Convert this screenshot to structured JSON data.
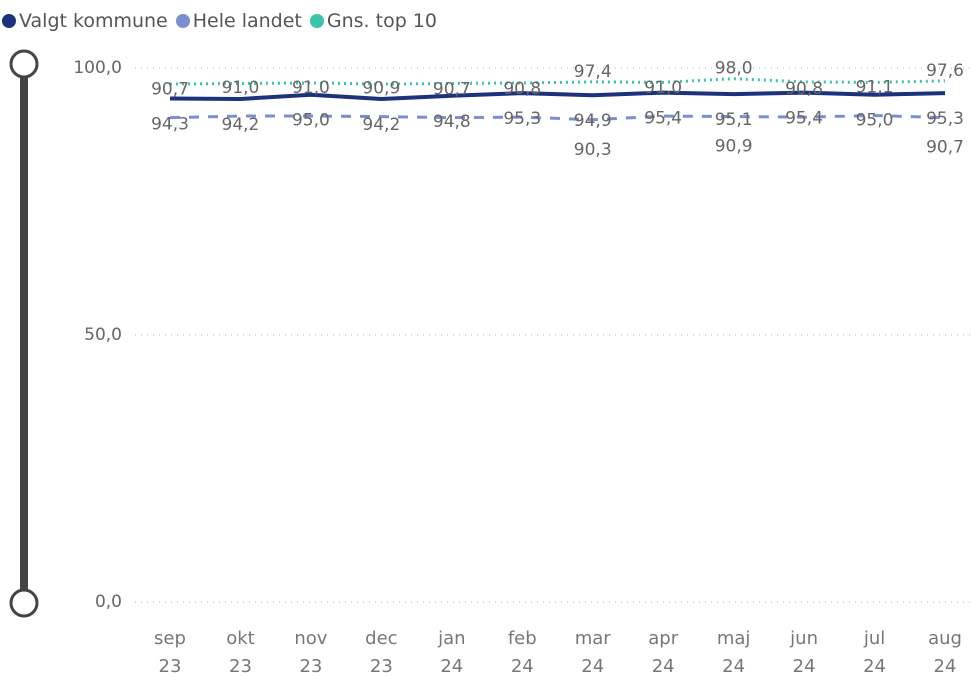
{
  "chart_data": {
    "type": "line",
    "categories": [
      "sep 23",
      "okt 23",
      "nov 23",
      "dec 23",
      "jan 24",
      "feb 24",
      "mar 24",
      "apr 24",
      "maj 24",
      "jun 24",
      "jul 24",
      "aug 24"
    ],
    "series": [
      {
        "name": "Valgt kommune",
        "color": "#1c327e",
        "style": "solid",
        "values": [
          94.3,
          94.2,
          95.0,
          94.2,
          94.8,
          95.3,
          94.9,
          95.4,
          95.1,
          95.4,
          95.0,
          95.3
        ],
        "value_labels": [
          "94,3",
          "94,2",
          "95,0",
          "94,2",
          "94,8",
          "95,3",
          "94,9",
          "95,4",
          "95,1",
          "95,4",
          "95,0",
          "95,3"
        ]
      },
      {
        "name": "Hele landet",
        "color": "#7b8fcf",
        "style": "dashed",
        "values": [
          90.7,
          91.0,
          91.0,
          90.9,
          90.7,
          90.8,
          90.3,
          91.0,
          90.9,
          90.8,
          91.1,
          90.7
        ],
        "value_labels": [
          "90,7",
          "91,0",
          "91,0",
          "90,9",
          "90,7",
          "90,8",
          "90,3",
          "91,0",
          "90,9",
          "90,8",
          "91,1",
          "90,7"
        ]
      },
      {
        "name": "Gns. top 10",
        "color": "#3cc4a8",
        "style": "dotted",
        "values": [
          97.0,
          97.1,
          97.2,
          97.0,
          97.1,
          97.2,
          97.4,
          97.3,
          98.0,
          97.4,
          97.3,
          97.6
        ],
        "value_labels": [
          null,
          null,
          null,
          null,
          null,
          null,
          "97,4",
          null,
          "98,0",
          null,
          null,
          "97,6"
        ]
      }
    ],
    "ylim": [
      0,
      100
    ],
    "yticks": [
      {
        "value": 0,
        "label": "0,0"
      },
      {
        "value": 50,
        "label": "50,0"
      },
      {
        "value": 100,
        "label": "100,0"
      }
    ],
    "grid": true,
    "legend": "top-left"
  }
}
